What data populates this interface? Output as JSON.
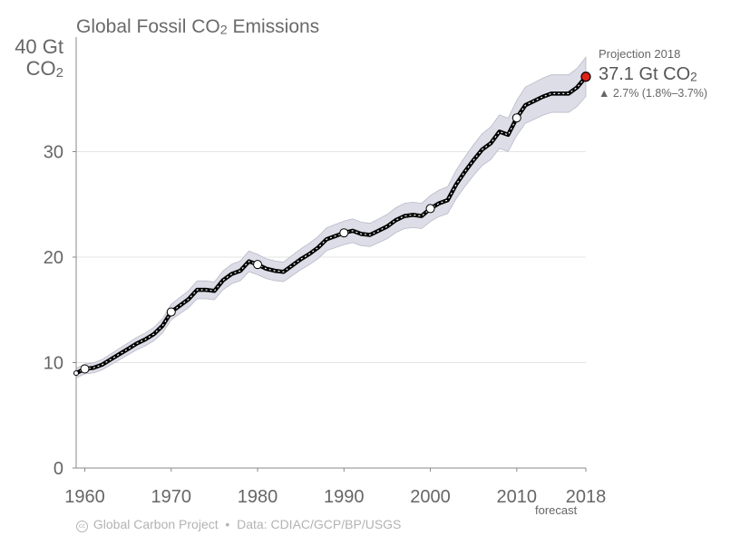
{
  "title_prefix": "Global Fossil CO",
  "title_sub": "2",
  "title_suffix": " Emissions",
  "ylabel_line1": "40 Gt",
  "ylabel_line2_prefix": "CO",
  "ylabel_line2_sub": "2",
  "projection": {
    "label": "Projection 2018",
    "value_prefix": "37.1 Gt CO",
    "value_sub": "2",
    "change": "▲ 2.7% (1.8%–3.7%)"
  },
  "forecast_label": "forecast",
  "footer": {
    "license_icon": "cc-by-icon",
    "source": "Global Carbon Project",
    "separator": "•",
    "data_credit": "Data: CDIAC/GCP/BP/USGS"
  },
  "colors": {
    "line": "#000000",
    "band": "#dddde8",
    "band_edge": "#b9b9c8",
    "marker": "#ffffff",
    "projection_marker": "#e0201b",
    "axis": "#888888",
    "grid": "#e4e4e4"
  },
  "chart_data": {
    "type": "line",
    "title": "Global Fossil CO2 Emissions",
    "ylabel": "Gt CO2",
    "xlim": [
      1959,
      2018
    ],
    "ylim": [
      0,
      40
    ],
    "x_ticks": [
      1960,
      1970,
      1980,
      1990,
      2000,
      2010,
      2018
    ],
    "y_ticks": [
      0,
      10,
      20,
      30
    ],
    "grid": "horizontal",
    "series": [
      {
        "x": [
          1959,
          1960,
          1961,
          1962,
          1963,
          1964,
          1965,
          1966,
          1967,
          1968,
          1969,
          1970,
          1971,
          1972,
          1973,
          1974,
          1975,
          1976,
          1977,
          1978,
          1979,
          1980,
          1981,
          1982,
          1983,
          1984,
          1985,
          1986,
          1987,
          1988,
          1989,
          1990,
          1991,
          1992,
          1993,
          1994,
          1995,
          1996,
          1997,
          1998,
          1999,
          2000,
          2001,
          2002,
          2003,
          2004,
          2005,
          2006,
          2007,
          2008,
          2009,
          2010,
          2011,
          2012,
          2013,
          2014,
          2015,
          2016,
          2017
        ],
        "values": [
          9.0,
          9.4,
          9.5,
          9.8,
          10.3,
          10.8,
          11.3,
          11.8,
          12.2,
          12.7,
          13.5,
          14.8,
          15.4,
          16.0,
          16.9,
          16.9,
          16.8,
          17.8,
          18.4,
          18.7,
          19.6,
          19.3,
          18.9,
          18.7,
          18.6,
          19.2,
          19.8,
          20.3,
          20.9,
          21.7,
          22.0,
          22.3,
          22.5,
          22.2,
          22.1,
          22.5,
          22.9,
          23.5,
          23.9,
          24.0,
          23.9,
          24.6,
          25.1,
          25.4,
          26.9,
          28.1,
          29.2,
          30.2,
          30.8,
          31.9,
          31.6,
          33.2,
          34.4,
          34.8,
          35.2,
          35.5,
          35.5,
          35.5,
          36.1
        ],
        "uncertainty": 0.05
      }
    ],
    "highlighted_years": [
      1960,
      1970,
      1980,
      1990,
      2000,
      2010
    ],
    "projection": {
      "x": 2018,
      "value": 37.1,
      "range": [
        35.0,
        39.2
      ]
    }
  }
}
